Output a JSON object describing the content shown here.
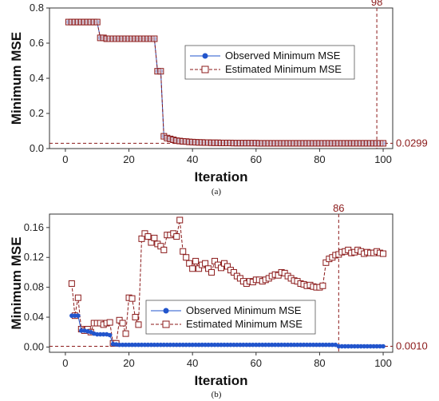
{
  "chart_data": [
    {
      "type": "line",
      "caption": "(a)",
      "xlabel": "Iteration",
      "ylabel": "Minimum MSE",
      "xlim": [
        -5,
        103
      ],
      "ylim": [
        0,
        0.8
      ],
      "xticks": [
        "0",
        "20",
        "40",
        "60",
        "80",
        "100"
      ],
      "yticks": [
        "0.0",
        "0.2",
        "0.4",
        "0.6",
        "0.8"
      ],
      "legend": {
        "placement": "top-right",
        "entries": [
          "Observed Minimum MSE",
          "Estimated Minimum MSE"
        ]
      },
      "series": [
        {
          "name": "Observed Minimum MSE",
          "color": "#2255cc",
          "x": [
            1,
            2,
            3,
            4,
            5,
            6,
            7,
            8,
            9,
            10,
            11,
            12,
            13,
            14,
            15,
            16,
            17,
            18,
            19,
            20,
            21,
            22,
            23,
            24,
            25,
            26,
            27,
            28,
            29,
            30,
            31,
            32,
            33,
            34,
            35,
            36,
            37,
            38,
            39,
            40,
            41,
            42,
            43,
            44,
            45,
            46,
            47,
            48,
            49,
            50,
            51,
            52,
            53,
            54,
            55,
            56,
            57,
            58,
            59,
            60,
            61,
            62,
            63,
            64,
            65,
            66,
            67,
            68,
            69,
            70,
            71,
            72,
            73,
            74,
            75,
            76,
            77,
            78,
            79,
            80,
            81,
            82,
            83,
            84,
            85,
            86,
            87,
            88,
            89,
            90,
            91,
            92,
            93,
            94,
            95,
            96,
            97,
            98,
            99,
            100
          ],
          "y": [
            0.72,
            0.72,
            0.72,
            0.72,
            0.72,
            0.72,
            0.72,
            0.72,
            0.72,
            0.72,
            0.63,
            0.63,
            0.625,
            0.625,
            0.625,
            0.625,
            0.625,
            0.625,
            0.625,
            0.625,
            0.625,
            0.625,
            0.625,
            0.625,
            0.625,
            0.625,
            0.625,
            0.625,
            0.44,
            0.44,
            0.07,
            0.06,
            0.055,
            0.05,
            0.045,
            0.043,
            0.041,
            0.04,
            0.038,
            0.037,
            0.036,
            0.035,
            0.035,
            0.034,
            0.034,
            0.033,
            0.033,
            0.033,
            0.032,
            0.032,
            0.032,
            0.032,
            0.031,
            0.031,
            0.031,
            0.031,
            0.031,
            0.031,
            0.031,
            0.031,
            0.03,
            0.03,
            0.03,
            0.03,
            0.03,
            0.03,
            0.03,
            0.03,
            0.03,
            0.03,
            0.03,
            0.03,
            0.03,
            0.03,
            0.03,
            0.03,
            0.03,
            0.03,
            0.03,
            0.03,
            0.03,
            0.03,
            0.03,
            0.03,
            0.03,
            0.03,
            0.03,
            0.03,
            0.03,
            0.03,
            0.03,
            0.03,
            0.03,
            0.03,
            0.03,
            0.03,
            0.03,
            0.0299,
            0.0299,
            0.0299
          ]
        },
        {
          "name": "Estimated Minimum MSE",
          "color": "#8b1a1a",
          "x": [
            1,
            2,
            3,
            4,
            5,
            6,
            7,
            8,
            9,
            10,
            11,
            12,
            13,
            14,
            15,
            16,
            17,
            18,
            19,
            20,
            21,
            22,
            23,
            24,
            25,
            26,
            27,
            28,
            29,
            30,
            31,
            32,
            33,
            34,
            35,
            36,
            37,
            38,
            39,
            40,
            41,
            42,
            43,
            44,
            45,
            46,
            47,
            48,
            49,
            50,
            51,
            52,
            53,
            54,
            55,
            56,
            57,
            58,
            59,
            60,
            61,
            62,
            63,
            64,
            65,
            66,
            67,
            68,
            69,
            70,
            71,
            72,
            73,
            74,
            75,
            76,
            77,
            78,
            79,
            80,
            81,
            82,
            83,
            84,
            85,
            86,
            87,
            88,
            89,
            90,
            91,
            92,
            93,
            94,
            95,
            96,
            97,
            98,
            99,
            100
          ],
          "y": [
            0.72,
            0.72,
            0.72,
            0.72,
            0.72,
            0.72,
            0.72,
            0.72,
            0.72,
            0.72,
            0.63,
            0.63,
            0.625,
            0.625,
            0.625,
            0.625,
            0.625,
            0.625,
            0.625,
            0.625,
            0.625,
            0.625,
            0.625,
            0.625,
            0.625,
            0.625,
            0.625,
            0.625,
            0.44,
            0.44,
            0.07,
            0.06,
            0.055,
            0.05,
            0.045,
            0.043,
            0.041,
            0.04,
            0.038,
            0.037,
            0.036,
            0.035,
            0.035,
            0.034,
            0.034,
            0.033,
            0.033,
            0.033,
            0.032,
            0.032,
            0.032,
            0.032,
            0.031,
            0.031,
            0.031,
            0.031,
            0.031,
            0.031,
            0.031,
            0.031,
            0.03,
            0.03,
            0.03,
            0.03,
            0.03,
            0.03,
            0.03,
            0.03,
            0.03,
            0.03,
            0.03,
            0.03,
            0.03,
            0.03,
            0.03,
            0.03,
            0.03,
            0.03,
            0.03,
            0.03,
            0.03,
            0.03,
            0.03,
            0.03,
            0.03,
            0.03,
            0.03,
            0.03,
            0.03,
            0.03,
            0.03,
            0.03,
            0.03,
            0.03,
            0.03,
            0.03,
            0.03,
            0.0299,
            0.0299,
            0.0299
          ]
        }
      ],
      "vline": {
        "x": 98,
        "label": "98",
        "color": "#8b1a1a"
      },
      "hline": {
        "y": 0.0299,
        "label": "0.0299",
        "color": "#8b1a1a"
      }
    },
    {
      "type": "line",
      "caption": "(b)",
      "xlabel": "Iteration",
      "ylabel": "Minimum MSE",
      "xlim": [
        -5,
        103
      ],
      "ylim": [
        -0.007,
        0.178
      ],
      "xticks": [
        "0",
        "20",
        "40",
        "60",
        "80",
        "100"
      ],
      "yticks": [
        "0.00",
        "0.04",
        "0.08",
        "0.12",
        "0.16"
      ],
      "legend": {
        "placement": "bottom-center",
        "entries": [
          "Observed Minimum MSE",
          "Estimated Minimum MSE"
        ]
      },
      "series": [
        {
          "name": "Observed Minimum MSE",
          "color": "#2255cc",
          "x": [
            2,
            3,
            4,
            5,
            6,
            7,
            8,
            9,
            10,
            11,
            12,
            13,
            14,
            15,
            16,
            17,
            18,
            19,
            20,
            21,
            22,
            23,
            24,
            25,
            26,
            27,
            28,
            29,
            30,
            31,
            32,
            33,
            34,
            35,
            36,
            37,
            38,
            39,
            40,
            41,
            42,
            43,
            44,
            45,
            46,
            47,
            48,
            49,
            50,
            51,
            52,
            53,
            54,
            55,
            56,
            57,
            58,
            59,
            60,
            61,
            62,
            63,
            64,
            65,
            66,
            67,
            68,
            69,
            70,
            71,
            72,
            73,
            74,
            75,
            76,
            77,
            78,
            79,
            80,
            81,
            82,
            83,
            84,
            85,
            86,
            87,
            88,
            89,
            90,
            91,
            92,
            93,
            94,
            95,
            96,
            97,
            98,
            99,
            100
          ],
          "y": [
            0.042,
            0.042,
            0.042,
            0.022,
            0.022,
            0.021,
            0.02,
            0.018,
            0.017,
            0.017,
            0.017,
            0.017,
            0.016,
            0.004,
            0.0035,
            0.003,
            0.003,
            0.003,
            0.003,
            0.003,
            0.003,
            0.003,
            0.003,
            0.003,
            0.003,
            0.003,
            0.003,
            0.003,
            0.003,
            0.003,
            0.003,
            0.003,
            0.003,
            0.003,
            0.003,
            0.003,
            0.003,
            0.003,
            0.003,
            0.003,
            0.003,
            0.003,
            0.003,
            0.003,
            0.003,
            0.003,
            0.003,
            0.003,
            0.003,
            0.003,
            0.003,
            0.003,
            0.003,
            0.003,
            0.003,
            0.003,
            0.003,
            0.003,
            0.003,
            0.003,
            0.003,
            0.003,
            0.003,
            0.003,
            0.003,
            0.003,
            0.003,
            0.003,
            0.003,
            0.003,
            0.003,
            0.003,
            0.003,
            0.003,
            0.003,
            0.003,
            0.003,
            0.003,
            0.003,
            0.003,
            0.003,
            0.003,
            0.003,
            0.003,
            0.001,
            0.001,
            0.001,
            0.001,
            0.001,
            0.001,
            0.001,
            0.001,
            0.001,
            0.001,
            0.001,
            0.001,
            0.001,
            0.001,
            0.001
          ]
        },
        {
          "name": "Estimated Minimum MSE",
          "color": "#8b1a1a",
          "x": [
            2,
            3,
            4,
            5,
            6,
            7,
            8,
            9,
            10,
            11,
            12,
            13,
            14,
            15,
            16,
            17,
            18,
            19,
            20,
            21,
            22,
            23,
            24,
            25,
            26,
            27,
            28,
            29,
            30,
            31,
            32,
            33,
            34,
            35,
            36,
            37,
            38,
            39,
            40,
            41,
            42,
            43,
            44,
            45,
            46,
            47,
            48,
            49,
            50,
            51,
            52,
            53,
            54,
            55,
            56,
            57,
            58,
            59,
            60,
            61,
            62,
            63,
            64,
            65,
            66,
            67,
            68,
            69,
            70,
            71,
            72,
            73,
            74,
            75,
            76,
            77,
            78,
            79,
            80,
            81,
            82,
            83,
            84,
            85,
            86,
            87,
            88,
            89,
            90,
            91,
            92,
            93,
            94,
            95,
            96,
            97,
            98,
            99,
            100
          ],
          "y": [
            0.085,
            0.042,
            0.066,
            0.024,
            0.022,
            0.024,
            0.02,
            0.032,
            0.032,
            0.032,
            0.03,
            0.032,
            0.033,
            0.005,
            0.005,
            0.036,
            0.032,
            0.018,
            0.066,
            0.065,
            0.04,
            0.03,
            0.145,
            0.152,
            0.148,
            0.14,
            0.146,
            0.138,
            0.135,
            0.13,
            0.15,
            0.15,
            0.152,
            0.148,
            0.17,
            0.128,
            0.12,
            0.112,
            0.105,
            0.115,
            0.105,
            0.11,
            0.112,
            0.105,
            0.1,
            0.115,
            0.11,
            0.106,
            0.112,
            0.108,
            0.103,
            0.1,
            0.095,
            0.092,
            0.088,
            0.085,
            0.088,
            0.087,
            0.09,
            0.09,
            0.088,
            0.09,
            0.092,
            0.095,
            0.097,
            0.096,
            0.1,
            0.099,
            0.095,
            0.092,
            0.089,
            0.088,
            0.085,
            0.084,
            0.082,
            0.083,
            0.081,
            0.08,
            0.08,
            0.082,
            0.113,
            0.118,
            0.12,
            0.123,
            0.124,
            0.127,
            0.128,
            0.13,
            0.126,
            0.127,
            0.13,
            0.128,
            0.125,
            0.127,
            0.126,
            0.126,
            0.128,
            0.126,
            0.125
          ]
        }
      ],
      "vline": {
        "x": 86,
        "label": "86",
        "color": "#8b1a1a"
      },
      "hline": {
        "y": 0.001,
        "label": "0.0010",
        "color": "#8b1a1a"
      }
    }
  ]
}
